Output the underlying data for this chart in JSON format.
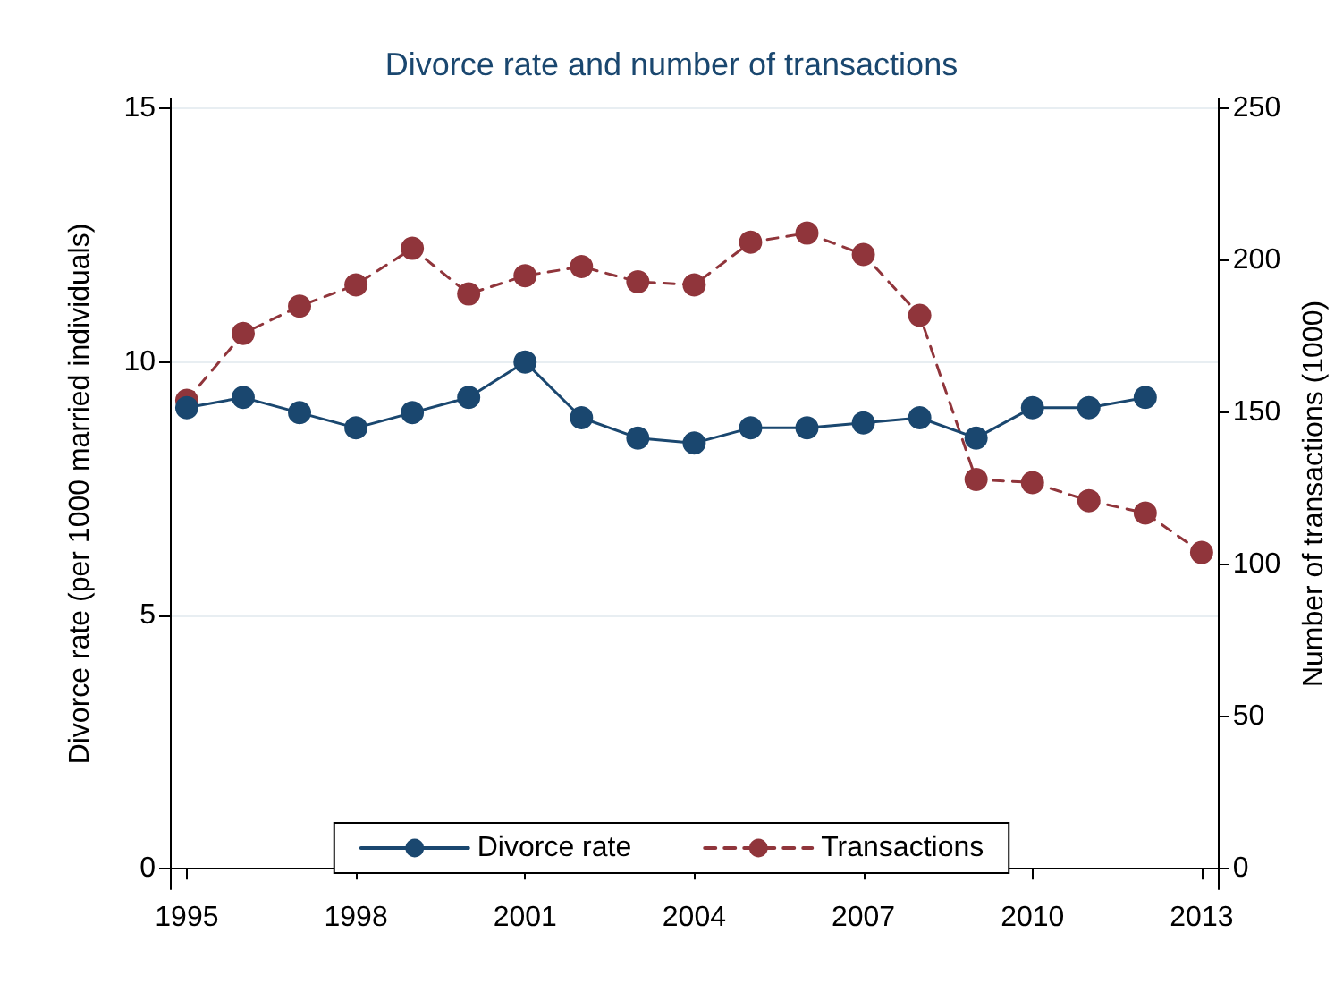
{
  "chart_data": {
    "type": "line",
    "title": "Divorce rate and number of transactions",
    "x": [
      1995,
      1996,
      1997,
      1998,
      1999,
      2000,
      2001,
      2002,
      2003,
      2004,
      2005,
      2006,
      2007,
      2008,
      2009,
      2010,
      2011,
      2012,
      2013
    ],
    "series": [
      {
        "name": "Divorce rate",
        "color": "#1a476f",
        "line_style": "solid",
        "values": [
          9.1,
          9.3,
          9.0,
          8.7,
          9.0,
          9.3,
          10.0,
          8.9,
          8.5,
          8.4,
          8.7,
          8.7,
          8.8,
          8.9,
          8.5,
          9.1,
          9.1,
          9.3,
          null
        ]
      },
      {
        "name": "Transactions",
        "color": "#90353b",
        "line_style": "dashed",
        "axis": "y2",
        "values": [
          154,
          176,
          185,
          192,
          204,
          189,
          195,
          198,
          193,
          192,
          206,
          209,
          202,
          182,
          128,
          127,
          121,
          117,
          104
        ]
      }
    ],
    "xlim": [
      1994.7,
      2013.3
    ],
    "xticks": [
      1995,
      1998,
      2001,
      2004,
      2007,
      2010,
      2013
    ],
    "ylabel": "Divorce rate (per 1000 married individuals)",
    "ylim": [
      -0.4,
      15.2
    ],
    "yticks": [
      0,
      5,
      10,
      15
    ],
    "y2label": "Number of transactions (1000)",
    "y2lim": [
      -6.7,
      253.3
    ],
    "y2ticks": [
      0,
      50,
      100,
      150,
      200,
      250
    ],
    "grid": "y",
    "legend": "bottom",
    "marker": "circle"
  }
}
